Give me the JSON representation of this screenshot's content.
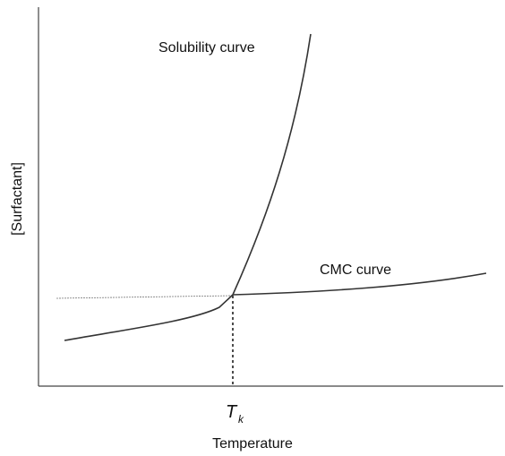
{
  "labels": {
    "solubility_curve": "Solubility curve",
    "cmc_curve": "CMC curve",
    "t_symbol": "T",
    "t_subscript": "k",
    "x_axis": "Temperature",
    "y_axis": "[Surfactant]"
  }
}
